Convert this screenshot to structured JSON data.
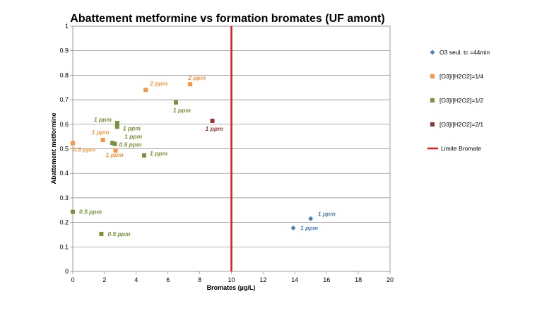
{
  "chart_data": {
    "type": "scatter",
    "title": "Abattement metformine vs formation bromates (UF amont)",
    "xlabel": "Bromates (µg/L)",
    "ylabel": "Abattement metformine",
    "xlim": [
      0,
      20
    ],
    "ylim": [
      0,
      1
    ],
    "x_ticks": [
      "0",
      "2",
      "4",
      "6",
      "8",
      "10",
      "12",
      "14",
      "16",
      "18",
      "20"
    ],
    "y_ticks": [
      "0",
      "0.1",
      "0.2",
      "0.3",
      "0.4",
      "0.5",
      "0.6",
      "0.7",
      "0.8",
      "0.9",
      "1"
    ],
    "grid": "horizontal",
    "legend_position": "right",
    "series": [
      {
        "name": "O3 seul, tc =44min",
        "color": "#4a7ebb",
        "marker": "diamond",
        "points": [
          {
            "x": 15.0,
            "y": 0.215,
            "label": "1 ppm"
          },
          {
            "x": 13.9,
            "y": 0.177,
            "label": "1 ppm"
          }
        ]
      },
      {
        "name": "[O3]/[H2O2]=1/4",
        "color": "#f79646",
        "marker": "square",
        "points": [
          {
            "x": 4.6,
            "y": 0.74,
            "label": "2 ppm"
          },
          {
            "x": 7.4,
            "y": 0.763,
            "label": "2 ppm"
          },
          {
            "x": 1.9,
            "y": 0.536,
            "label": "1 ppm"
          },
          {
            "x": 2.7,
            "y": 0.493,
            "label": "1 ppm"
          },
          {
            "x": 0.0,
            "y": 0.523,
            "label": "0.5 ppm"
          }
        ]
      },
      {
        "name": "[O3]/[H2O2]=1/2",
        "color": "#77933c",
        "marker": "square",
        "points": [
          {
            "x": 6.5,
            "y": 0.689,
            "label": "1 ppm"
          },
          {
            "x": 2.8,
            "y": 0.605,
            "label": "1 ppm"
          },
          {
            "x": 2.8,
            "y": 0.59,
            "label": "1 ppm"
          },
          {
            "x": 2.5,
            "y": 0.524,
            "label": "1 ppm"
          },
          {
            "x": 2.65,
            "y": 0.52,
            "label": "0.5 ppm"
          },
          {
            "x": 4.5,
            "y": 0.473,
            "label": "1 ppm"
          },
          {
            "x": 0.0,
            "y": 0.243,
            "label": "0.5 ppm"
          },
          {
            "x": 1.8,
            "y": 0.153,
            "label": "0.5 ppm"
          }
        ]
      },
      {
        "name": "[O3]/[H2O2]=2/1",
        "color": "#953735",
        "marker": "square",
        "points": [
          {
            "x": 8.8,
            "y": 0.614,
            "label": "1 ppm"
          }
        ]
      }
    ],
    "reference_line": {
      "name": "Limite Bromate",
      "x": 10,
      "color": "#e31a1c"
    }
  }
}
